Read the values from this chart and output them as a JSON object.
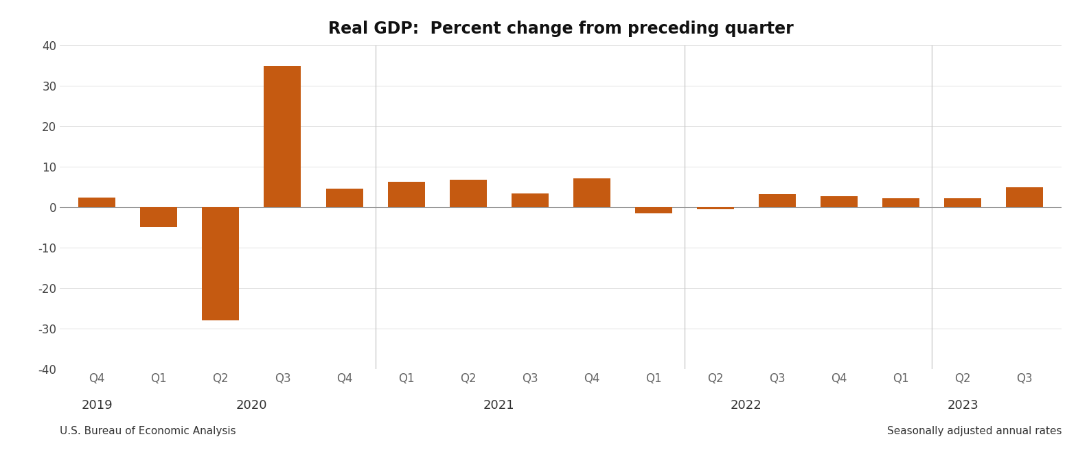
{
  "title": "Real GDP:  Percent change from preceding quarter",
  "bar_color": "#C55A11",
  "background_color": "#FFFFFF",
  "xlabel_source": "U.S. Bureau of Economic Analysis",
  "xlabel_note": "Seasonally adjusted annual rates",
  "ylim": [
    -40,
    40
  ],
  "yticks": [
    -40,
    -30,
    -20,
    -10,
    0,
    10,
    20,
    30,
    40
  ],
  "quarter_labels": [
    "Q4",
    "Q1",
    "Q2",
    "Q3",
    "Q4",
    "Q1",
    "Q2",
    "Q3",
    "Q4",
    "Q1",
    "Q2",
    "Q3",
    "Q4",
    "Q1",
    "Q2",
    "Q3"
  ],
  "values": [
    2.4,
    -5.0,
    -28.0,
    34.8,
    4.5,
    6.3,
    6.7,
    3.4,
    7.0,
    -1.6,
    -0.6,
    3.2,
    2.6,
    2.2,
    2.1,
    4.9
  ],
  "vline_positions": [
    4.5,
    9.5,
    13.5
  ],
  "year_groups": {
    "2019": [
      0
    ],
    "2020": [
      1,
      2,
      3,
      4
    ],
    "2021": [
      5,
      6,
      7,
      8
    ],
    "2022": [
      9,
      10,
      11,
      12
    ],
    "2023": [
      13,
      14,
      15
    ]
  },
  "title_fontsize": 17,
  "tick_fontsize": 12,
  "year_fontsize": 13,
  "source_fontsize": 11
}
